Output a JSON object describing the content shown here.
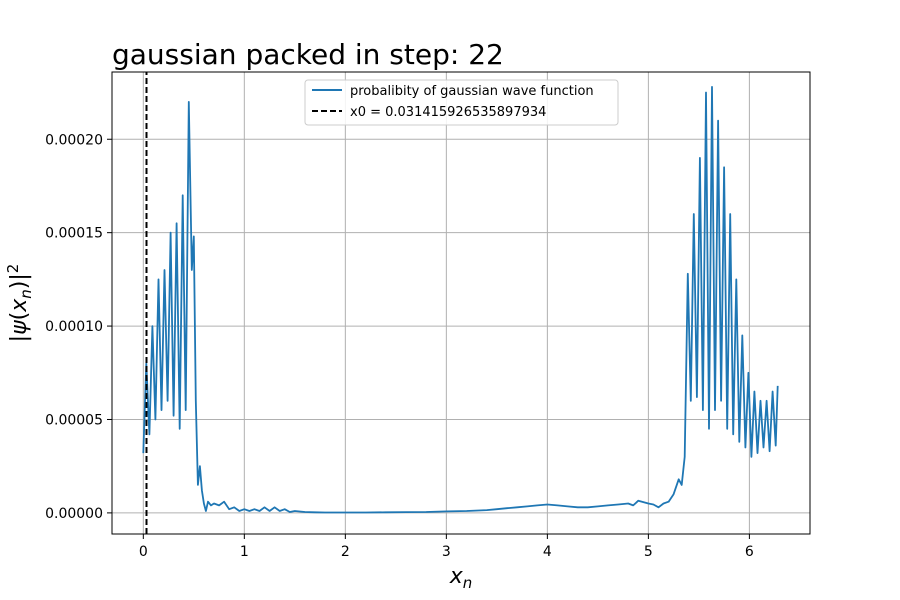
{
  "chart_data": {
    "type": "line",
    "title": "gaussian packed in step: 22",
    "xlabel": "x_n",
    "ylabel": "|ψ(x_n)|²",
    "xlim": [
      -0.31,
      6.6
    ],
    "ylim": [
      -1.13e-05,
      0.000236
    ],
    "xticks": [
      0,
      1,
      2,
      3,
      4,
      5,
      6
    ],
    "yticks": [
      0.0,
      5e-05,
      0.0001,
      0.00015,
      0.0002
    ],
    "ytick_labels": [
      "0.00000",
      "0.00005",
      "0.00010",
      "0.00015",
      "0.00020"
    ],
    "grid": true,
    "legend_position": "upper-center",
    "colors": {
      "series": "#1f77b4",
      "marker_line": "#000000",
      "grid": "#b0b0b0"
    },
    "series": [
      {
        "name": "probalibity of gaussian wave function",
        "style": "solid",
        "x": [
          0.0,
          0.03,
          0.06,
          0.09,
          0.12,
          0.15,
          0.18,
          0.21,
          0.24,
          0.27,
          0.3,
          0.33,
          0.36,
          0.39,
          0.42,
          0.45,
          0.48,
          0.5,
          0.52,
          0.54,
          0.56,
          0.58,
          0.6,
          0.62,
          0.64,
          0.67,
          0.7,
          0.75,
          0.8,
          0.85,
          0.9,
          0.95,
          1.0,
          1.05,
          1.1,
          1.15,
          1.2,
          1.25,
          1.3,
          1.35,
          1.4,
          1.45,
          1.5,
          1.6,
          1.7,
          1.8,
          2.0,
          2.2,
          2.4,
          2.6,
          2.8,
          3.0,
          3.2,
          3.4,
          3.5,
          3.6,
          3.7,
          3.8,
          3.9,
          4.0,
          4.1,
          4.2,
          4.3,
          4.4,
          4.5,
          4.6,
          4.7,
          4.8,
          4.85,
          4.9,
          5.0,
          5.05,
          5.1,
          5.15,
          5.2,
          5.25,
          5.3,
          5.33,
          5.36,
          5.39,
          5.42,
          5.45,
          5.48,
          5.51,
          5.54,
          5.57,
          5.6,
          5.63,
          5.66,
          5.69,
          5.72,
          5.75,
          5.78,
          5.81,
          5.84,
          5.87,
          5.9,
          5.93,
          5.96,
          5.99,
          6.02,
          6.05,
          6.08,
          6.11,
          6.14,
          6.17,
          6.2,
          6.23,
          6.26,
          6.28
        ],
        "y": [
          3.2e-05,
          8e-05,
          4.2e-05,
          0.0001,
          5e-05,
          0.000125,
          5.5e-05,
          0.00013,
          6e-05,
          0.00015,
          5.2e-05,
          0.000155,
          4.5e-05,
          0.00017,
          5.5e-05,
          0.00022,
          0.00013,
          0.000148,
          6e-05,
          1.5e-05,
          2.5e-05,
          1.2e-05,
          5e-06,
          1e-06,
          6e-06,
          4e-06,
          5e-06,
          4e-06,
          6e-06,
          2e-06,
          3e-06,
          1e-06,
          2e-06,
          1e-06,
          2e-06,
          1e-06,
          3e-06,
          1e-06,
          3e-06,
          1e-06,
          2e-06,
          5e-07,
          1e-06,
          5e-07,
          3e-07,
          2e-07,
          2e-07,
          2e-07,
          3e-07,
          4e-07,
          5e-07,
          8e-07,
          1e-06,
          1.5e-06,
          2e-06,
          2.5e-06,
          3e-06,
          3.5e-06,
          4e-06,
          4.5e-06,
          4e-06,
          3.5e-06,
          3e-06,
          3e-06,
          3.5e-06,
          4e-06,
          4.5e-06,
          5e-06,
          4e-06,
          6.5e-06,
          5e-06,
          4.5e-06,
          3e-06,
          5e-06,
          6e-06,
          1e-05,
          1.8e-05,
          1.5e-05,
          3e-05,
          0.000128,
          6e-05,
          0.00016,
          6.2e-05,
          0.00019,
          5.5e-05,
          0.000225,
          4.5e-05,
          0.000228,
          5.5e-05,
          0.00021,
          6e-05,
          0.000185,
          4.5e-05,
          0.00016,
          4.2e-05,
          0.000125,
          3.8e-05,
          9.5e-05,
          3.5e-05,
          7.5e-05,
          3e-05,
          6.5e-05,
          3.2e-05,
          6e-05,
          3.5e-05,
          6e-05,
          3.3e-05,
          6.5e-05,
          3.6e-05,
          6.8e-05
        ]
      },
      {
        "name": "x0 = 0.031415926535897934",
        "style": "dashed",
        "x": [
          0.031415926535897934,
          0.031415926535897934
        ],
        "y": [
          -1.13e-05,
          0.000236
        ]
      }
    ]
  }
}
